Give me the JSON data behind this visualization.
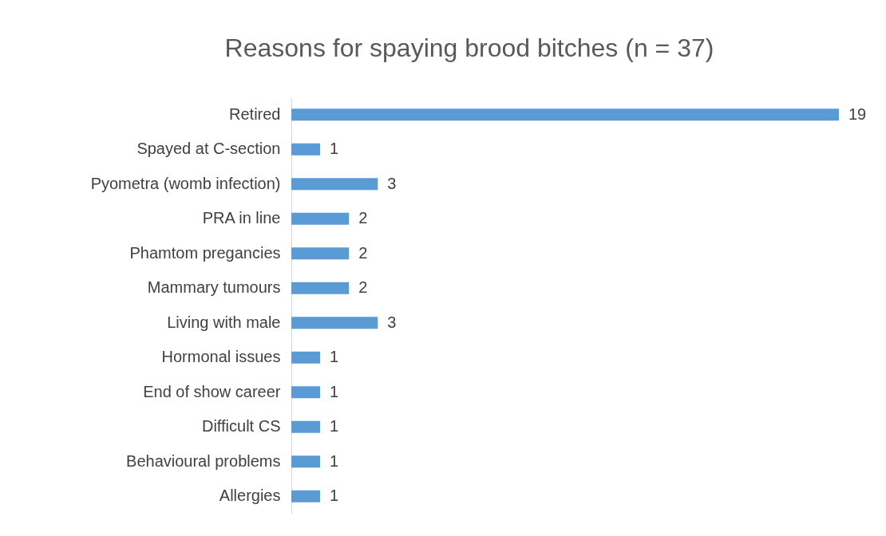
{
  "chart_data": {
    "type": "bar",
    "orientation": "horizontal",
    "title": "Reasons for spaying brood bitches (n = 37)",
    "categories": [
      "Retired",
      "Spayed at C-section",
      "Pyometra (womb infection)",
      "PRA in line",
      "Phamtom pregancies",
      "Mammary tumours",
      "Living with male",
      "Hormonal issues",
      "End of show career",
      "Difficult CS",
      "Behavioural problems",
      "Allergies"
    ],
    "values": [
      19,
      1,
      3,
      2,
      2,
      2,
      3,
      1,
      1,
      1,
      1,
      1
    ],
    "color": "#5b9bd5",
    "data_labels": true,
    "grid": false,
    "tick_labels": "y"
  }
}
